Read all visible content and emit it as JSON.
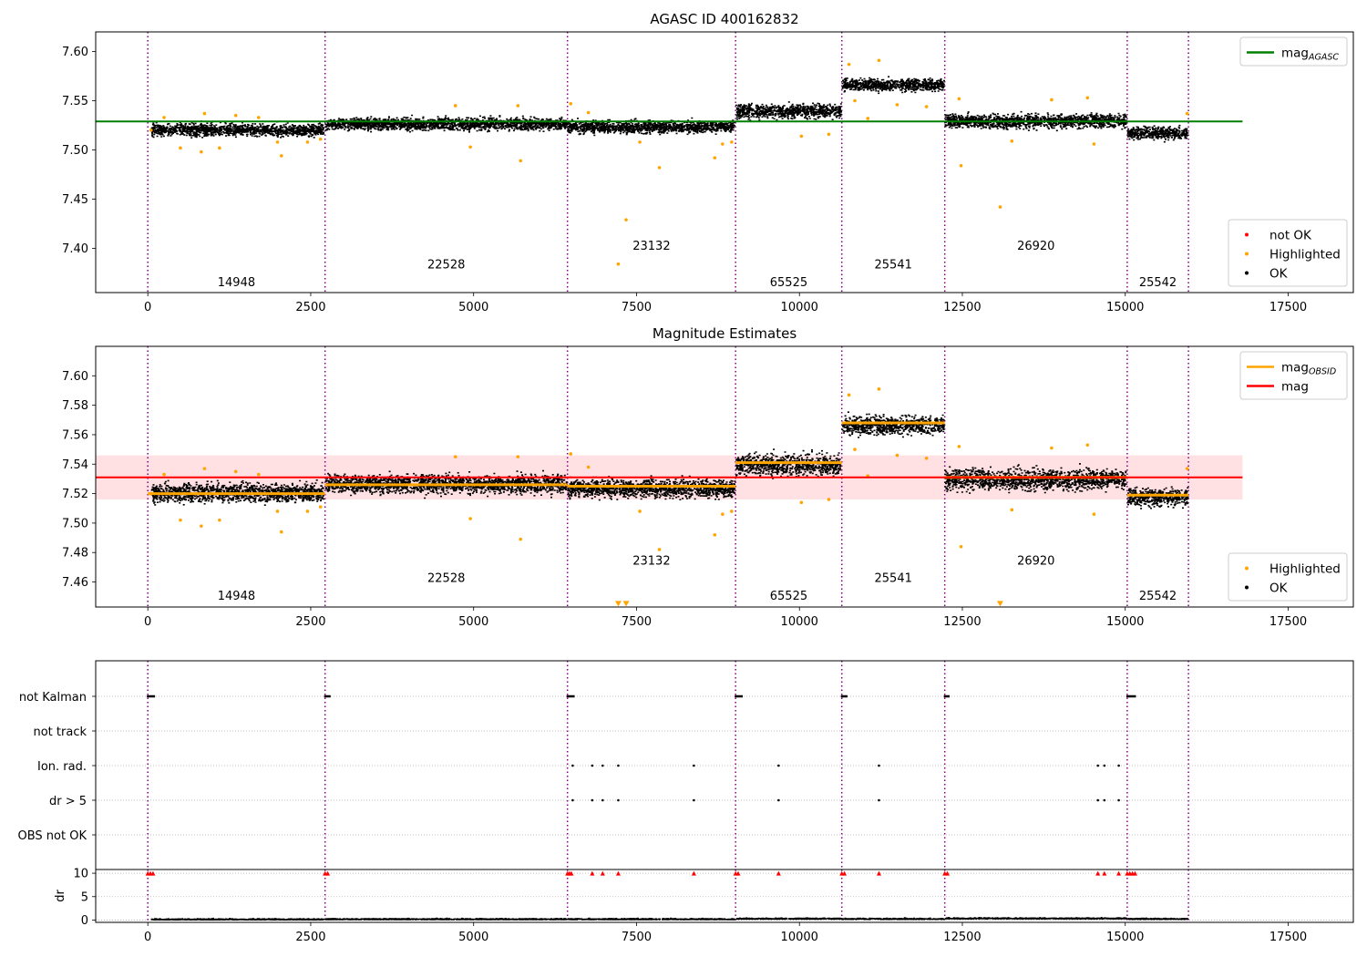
{
  "chart_data": [
    {
      "type": "scatter",
      "title": "AGASC ID 400162832",
      "xlim": [
        -800,
        18500
      ],
      "ylim": [
        7.355,
        7.62
      ],
      "x_ticks": [
        0,
        2500,
        5000,
        7500,
        10000,
        12500,
        15000,
        17500
      ],
      "x_tick_labels": [
        "0",
        "2500",
        "5000",
        "7500",
        "10000",
        "12500",
        "15000",
        "17500"
      ],
      "y_ticks": [
        7.4,
        7.45,
        7.5,
        7.55,
        7.6
      ],
      "y_tick_labels": [
        "7.40",
        "7.45",
        "7.50",
        "7.55",
        "7.60"
      ],
      "grid": false,
      "obs_boundaries": [
        0,
        2720,
        6440,
        9020,
        10650,
        12230,
        15030,
        15970
      ],
      "obsid_labels": [
        {
          "text": "14948",
          "x": 1360,
          "y": 7.366
        },
        {
          "text": "22528",
          "x": 4580,
          "y": 7.384
        },
        {
          "text": "23132",
          "x": 7730,
          "y": 7.403
        },
        {
          "text": "65525",
          "x": 9835,
          "y": 7.366
        },
        {
          "text": "25541",
          "x": 11440,
          "y": 7.384
        },
        {
          "text": "26920",
          "x": 13630,
          "y": 7.403
        },
        {
          "text": "25542",
          "x": 15500,
          "y": 7.366
        }
      ],
      "series": [
        {
          "name": "OK",
          "kind": "points",
          "color": "#000000",
          "segments": [
            {
              "x": [
                60,
                2700
              ],
              "mean": 7.521,
              "spread": 0.006
            },
            {
              "x": [
                2730,
                6430
              ],
              "mean": 7.527,
              "spread": 0.006
            },
            {
              "x": [
                6450,
                9010
              ],
              "mean": 7.524,
              "spread": 0.006
            },
            {
              "x": [
                9030,
                10640
              ],
              "mean": 7.54,
              "spread": 0.007
            },
            {
              "x": [
                10660,
                12220
              ],
              "mean": 7.567,
              "spread": 0.006
            },
            {
              "x": [
                12240,
                15020
              ],
              "mean": 7.53,
              "spread": 0.007
            },
            {
              "x": [
                15040,
                15960
              ],
              "mean": 7.518,
              "spread": 0.006
            }
          ]
        },
        {
          "name": "Highlighted",
          "kind": "points",
          "color": "#ffa500",
          "points": [
            [
              50,
              7.52
            ],
            [
              250,
              7.533
            ],
            [
              500,
              7.502
            ],
            [
              820,
              7.498
            ],
            [
              870,
              7.537
            ],
            [
              1100,
              7.502
            ],
            [
              1350,
              7.535
            ],
            [
              1700,
              7.533
            ],
            [
              1990,
              7.508
            ],
            [
              2050,
              7.494
            ],
            [
              2450,
              7.508
            ],
            [
              2650,
              7.511
            ],
            [
              4720,
              7.545
            ],
            [
              4950,
              7.503
            ],
            [
              5680,
              7.545
            ],
            [
              5720,
              7.489
            ],
            [
              6490,
              7.547
            ],
            [
              6760,
              7.538
            ],
            [
              7220,
              7.384
            ],
            [
              7340,
              7.429
            ],
            [
              7550,
              7.508
            ],
            [
              7850,
              7.482
            ],
            [
              8700,
              7.492
            ],
            [
              8820,
              7.506
            ],
            [
              8960,
              7.508
            ],
            [
              10030,
              7.514
            ],
            [
              10450,
              7.516
            ],
            [
              10760,
              7.587
            ],
            [
              10850,
              7.55
            ],
            [
              11050,
              7.532
            ],
            [
              11220,
              7.591
            ],
            [
              11500,
              7.546
            ],
            [
              11950,
              7.544
            ],
            [
              12450,
              7.552
            ],
            [
              12480,
              7.484
            ],
            [
              13080,
              7.442
            ],
            [
              13260,
              7.509
            ],
            [
              13870,
              7.551
            ],
            [
              14420,
              7.553
            ],
            [
              14520,
              7.506
            ],
            [
              15950,
              7.537
            ]
          ]
        },
        {
          "name": "not OK",
          "kind": "points",
          "color": "#ff0000",
          "points": []
        },
        {
          "name": "mag_AGASC",
          "kind": "hline",
          "color": "#008000",
          "y": 7.529,
          "x": [
            -800,
            16800
          ]
        }
      ],
      "legends": [
        {
          "position": "upper-right",
          "entries": [
            {
              "label": "mag",
              "sub": "AGASC",
              "color": "#008000",
              "marker": "line"
            }
          ]
        },
        {
          "position": "lower-right",
          "entries": [
            {
              "label": "not OK",
              "color": "#ff0000",
              "marker": "dot"
            },
            {
              "label": "Highlighted",
              "color": "#ffa500",
              "marker": "dot"
            },
            {
              "label": "OK",
              "color": "#000000",
              "marker": "dot"
            }
          ]
        }
      ]
    },
    {
      "type": "scatter",
      "title": "Magnitude Estimates",
      "xlim": [
        -800,
        18500
      ],
      "ylim": [
        7.443,
        7.62
      ],
      "x_ticks": [
        0,
        2500,
        5000,
        7500,
        10000,
        12500,
        15000,
        17500
      ],
      "x_tick_labels": [
        "0",
        "2500",
        "5000",
        "7500",
        "10000",
        "12500",
        "15000",
        "17500"
      ],
      "y_ticks": [
        7.46,
        7.48,
        7.5,
        7.52,
        7.54,
        7.56,
        7.58,
        7.6
      ],
      "y_tick_labels": [
        "7.46",
        "7.48",
        "7.50",
        "7.52",
        "7.54",
        "7.56",
        "7.58",
        "7.60"
      ],
      "grid": false,
      "obs_boundaries": [
        0,
        2720,
        6440,
        9020,
        10650,
        12230,
        15030,
        15970
      ],
      "band": {
        "y": [
          7.516,
          7.546
        ],
        "x": [
          -800,
          16800
        ],
        "color": "#ffe0e3"
      },
      "obsid_labels": [
        {
          "text": "14948",
          "x": 1360,
          "y": 7.451
        },
        {
          "text": "22528",
          "x": 4580,
          "y": 7.463
        },
        {
          "text": "23132",
          "x": 7730,
          "y": 7.475
        },
        {
          "text": "65525",
          "x": 9835,
          "y": 7.451
        },
        {
          "text": "25541",
          "x": 11440,
          "y": 7.463
        },
        {
          "text": "26920",
          "x": 13630,
          "y": 7.475
        },
        {
          "text": "25542",
          "x": 15500,
          "y": 7.451
        }
      ],
      "series": [
        {
          "name": "OK",
          "kind": "points",
          "color": "#000000",
          "segments": [
            {
              "x": [
                60,
                2700
              ],
              "mean": 7.521,
              "spread": 0.006
            },
            {
              "x": [
                2730,
                6430
              ],
              "mean": 7.527,
              "spread": 0.006
            },
            {
              "x": [
                6450,
                9010
              ],
              "mean": 7.524,
              "spread": 0.006
            },
            {
              "x": [
                9030,
                10640
              ],
              "mean": 7.54,
              "spread": 0.007
            },
            {
              "x": [
                10660,
                12220
              ],
              "mean": 7.567,
              "spread": 0.006
            },
            {
              "x": [
                12240,
                15020
              ],
              "mean": 7.53,
              "spread": 0.007
            },
            {
              "x": [
                15040,
                15960
              ],
              "mean": 7.518,
              "spread": 0.006
            }
          ]
        },
        {
          "name": "Highlighted",
          "kind": "points",
          "color": "#ffa500",
          "points": [
            [
              50,
              7.52
            ],
            [
              250,
              7.533
            ],
            [
              500,
              7.502
            ],
            [
              820,
              7.498
            ],
            [
              870,
              7.537
            ],
            [
              1100,
              7.502
            ],
            [
              1350,
              7.535
            ],
            [
              1700,
              7.533
            ],
            [
              1990,
              7.508
            ],
            [
              2050,
              7.494
            ],
            [
              2450,
              7.508
            ],
            [
              2650,
              7.511
            ],
            [
              4720,
              7.545
            ],
            [
              4950,
              7.503
            ],
            [
              5680,
              7.545
            ],
            [
              5720,
              7.489
            ],
            [
              6490,
              7.547
            ],
            [
              6760,
              7.538
            ],
            [
              7550,
              7.508
            ],
            [
              7850,
              7.482
            ],
            [
              8700,
              7.492
            ],
            [
              8820,
              7.506
            ],
            [
              8960,
              7.508
            ],
            [
              10030,
              7.514
            ],
            [
              10450,
              7.516
            ],
            [
              10760,
              7.587
            ],
            [
              10850,
              7.55
            ],
            [
              11050,
              7.532
            ],
            [
              11220,
              7.591
            ],
            [
              11500,
              7.546
            ],
            [
              11950,
              7.544
            ],
            [
              12450,
              7.552
            ],
            [
              12480,
              7.484
            ],
            [
              13260,
              7.509
            ],
            [
              13870,
              7.551
            ],
            [
              14420,
              7.553
            ],
            [
              14520,
              7.506
            ],
            [
              15950,
              7.537
            ]
          ]
        },
        {
          "name": "out-of-range markers",
          "kind": "triangles-down",
          "color": "#ffa500",
          "points": [
            [
              7220,
              7.444
            ],
            [
              7340,
              7.444
            ],
            [
              13080,
              7.444
            ]
          ]
        },
        {
          "name": "mag_OBSID",
          "kind": "steps",
          "color": "#ffa500",
          "steps": [
            {
              "x": [
                0,
                2720
              ],
              "y": 7.52
            },
            {
              "x": [
                2720,
                6440
              ],
              "y": 7.526
            },
            {
              "x": [
                6440,
                9020
              ],
              "y": 7.525
            },
            {
              "x": [
                9020,
                10650
              ],
              "y": 7.541
            },
            {
              "x": [
                10650,
                12230
              ],
              "y": 7.568
            },
            {
              "x": [
                12230,
                15030
              ],
              "y": 7.531
            },
            {
              "x": [
                15030,
                15970
              ],
              "y": 7.519
            }
          ]
        },
        {
          "name": "mag",
          "kind": "hline",
          "color": "#ff0000",
          "y": 7.531,
          "x": [
            -800,
            16800
          ]
        }
      ],
      "legends": [
        {
          "position": "upper-right",
          "entries": [
            {
              "label": "mag",
              "sub": "OBSID",
              "color": "#ffa500",
              "marker": "line"
            },
            {
              "label": "mag",
              "sub": "",
              "color": "#ff0000",
              "marker": "line"
            }
          ]
        },
        {
          "position": "lower-right",
          "entries": [
            {
              "label": "Highlighted",
              "color": "#ffa500",
              "marker": "dot"
            },
            {
              "label": "OK",
              "color": "#000000",
              "marker": "dot"
            }
          ]
        }
      ]
    },
    {
      "type": "scatter",
      "title": "",
      "xlim": [
        -800,
        18500
      ],
      "x_ticks": [
        0,
        2500,
        5000,
        7500,
        10000,
        12500,
        15000,
        17500
      ],
      "x_tick_labels": [
        "0",
        "2500",
        "5000",
        "7500",
        "10000",
        "12500",
        "15000",
        "17500"
      ],
      "flag_rows": [
        "not Kalman",
        "not track",
        "Ion. rad.",
        "dr > 5",
        "OBS not OK"
      ],
      "obs_boundaries": [
        0,
        2720,
        6440,
        9020,
        10650,
        12230,
        15030,
        15970
      ],
      "flags": {
        "not Kalman": [
          [
            0,
            100
          ],
          [
            2720,
            2800
          ],
          [
            6440,
            6540
          ],
          [
            9020,
            9120
          ],
          [
            10650,
            10730
          ],
          [
            12230,
            12300
          ],
          [
            15030,
            15160
          ]
        ],
        "not track": [],
        "Ion. rad.": [
          6520,
          6820,
          6980,
          7220,
          8380,
          9680,
          11220,
          14580,
          14680,
          14900
        ],
        "dr > 5": [
          6520,
          6820,
          6980,
          7220,
          8380,
          9680,
          11220,
          14580,
          14680,
          14900
        ],
        "OBS not OK": []
      },
      "dr_panel": {
        "ylabel": "dr",
        "ylim": [
          -0.5,
          10.8
        ],
        "y_ticks": [
          0,
          5,
          10
        ],
        "y_tick_labels": [
          "0",
          "5",
          "10"
        ],
        "clipped_value": 10,
        "clipped_x": [
          0,
          40,
          80,
          2720,
          2760,
          6440,
          6470,
          6500,
          6820,
          6980,
          7220,
          8380,
          9020,
          9060,
          9680,
          10650,
          10690,
          11220,
          12230,
          12270,
          14580,
          14680,
          14900,
          15030,
          15070,
          15110,
          15150
        ],
        "segments": [
          {
            "x": [
              60,
              2700
            ],
            "mean": 0.2
          },
          {
            "x": [
              2730,
              6430
            ],
            "mean": 0.25
          },
          {
            "x": [
              6450,
              9010
            ],
            "mean": 0.25
          },
          {
            "x": [
              9030,
              10640
            ],
            "mean": 0.35
          },
          {
            "x": [
              10660,
              12220
            ],
            "mean": 0.3
          },
          {
            "x": [
              12240,
              15020
            ],
            "mean": 0.4
          },
          {
            "x": [
              15040,
              15960
            ],
            "mean": 0.3
          }
        ]
      }
    }
  ]
}
